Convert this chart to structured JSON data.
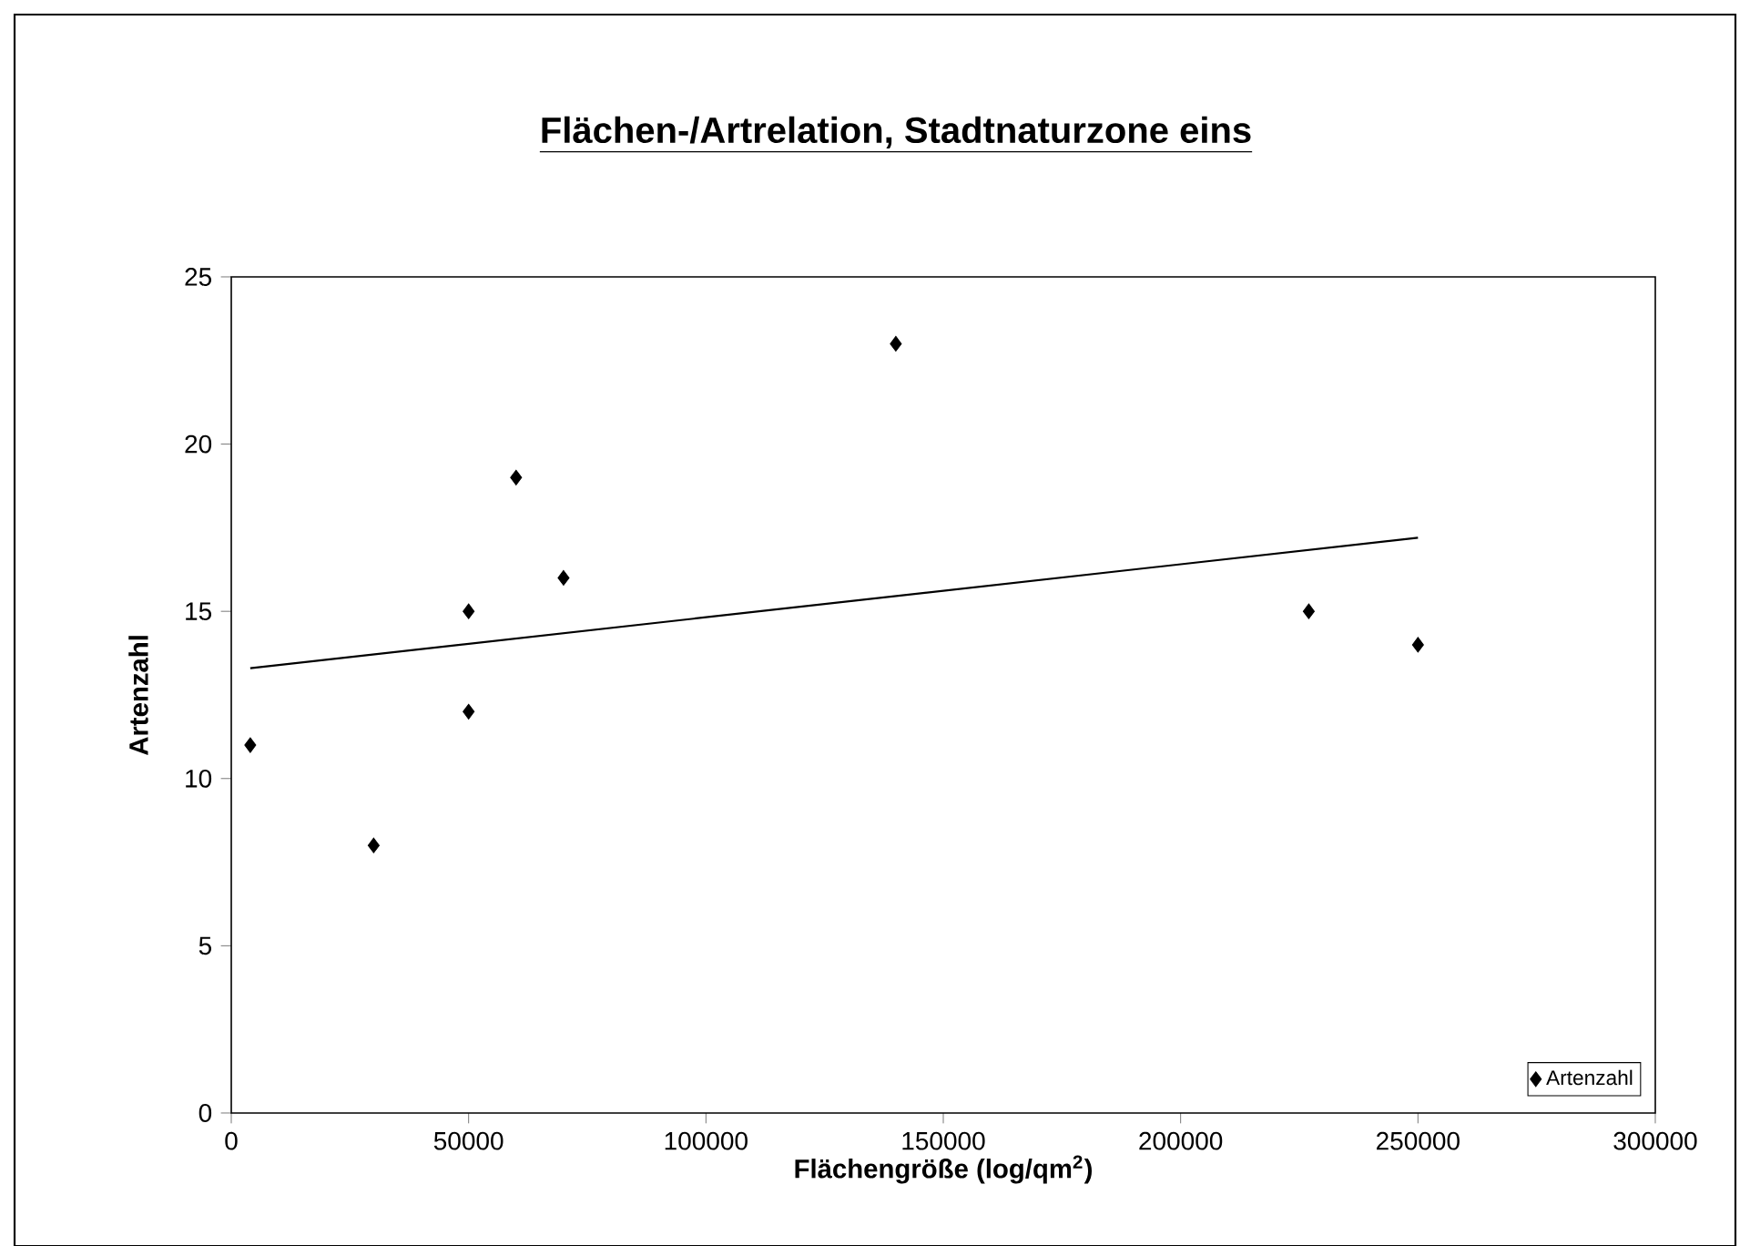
{
  "chart_data": {
    "type": "scatter",
    "title": "Flächen-/Artrelation, Stadtnaturzone eins",
    "xlabel": "Flächengröße (log/qm$^{2}$)",
    "ylabel": "Artenzahl",
    "series": [
      {
        "name": "Artenzahl",
        "color": "#000000",
        "marker": "diamond",
        "x": [
          4000,
          30000,
          50000,
          50000,
          60000,
          70000,
          140000,
          227000,
          250000
        ],
        "values": [
          11,
          8,
          15,
          12,
          19,
          16,
          23,
          15,
          14
        ]
      },
      {
        "type": "line",
        "color": "#000000",
        "marker": "none",
        "line_style": "solid",
        "x": [
          4000,
          250000
        ],
        "values": [
          13.3,
          17.2
        ]
      }
    ],
    "xlim": [
      0,
      300000
    ],
    "xticks": [
      0,
      50000,
      100000,
      150000,
      200000,
      250000,
      300000
    ],
    "ylim": [
      0,
      25
    ],
    "yticks": [
      0,
      5,
      10,
      15,
      20,
      25
    ],
    "grid": false,
    "legend": "bottom right"
  }
}
